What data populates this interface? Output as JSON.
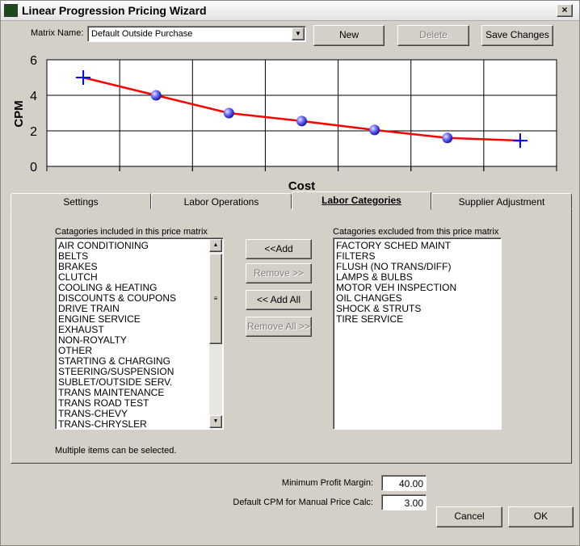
{
  "window": {
    "title": "Linear Progression Pricing Wizard"
  },
  "toolbar": {
    "matrix_label": "Matrix Name:",
    "matrix_value": "Default Outside Purchase",
    "buttons": [
      {
        "label": "New",
        "enabled": true
      },
      {
        "label": "Delete",
        "enabled": false
      },
      {
        "label": "Save Changes",
        "enabled": true
      }
    ]
  },
  "chart_data": {
    "type": "line",
    "y_label": "CPM",
    "x_label": "Cost",
    "categories": [
      null,
      null,
      null,
      null,
      null,
      null,
      null
    ],
    "values": [
      5,
      4,
      3,
      2.55,
      2.05,
      1.6,
      1.45
    ],
    "color": "#ff0000",
    "ylim": [
      0,
      6
    ],
    "yticks": [
      0,
      2,
      4,
      6
    ],
    "grid": true
  },
  "tabs": {
    "items": [
      "Settings",
      "Labor Operations",
      "Labor Categories",
      "Supplier Adjustment"
    ],
    "active": 2
  },
  "included": {
    "label": "Catagories included in this price matrix",
    "items": [
      "AIR CONDITIONING",
      "BELTS",
      "BRAKES",
      "CLUTCH",
      "COOLING & HEATING",
      "DISCOUNTS & COUPONS",
      "DRIVE TRAIN",
      "ENGINE SERVICE",
      "EXHAUST",
      "NON-ROYALTY",
      "OTHER",
      "STARTING & CHARGING",
      "STEERING/SUSPENSION",
      "SUBLET/OUTSIDE SERV.",
      "TRANS MAINTENANCE",
      "TRANS ROAD TEST",
      "TRANS-CHEVY",
      "TRANS-CHRYSLER"
    ]
  },
  "excluded": {
    "label": "Catagories excluded from this price matrix",
    "items": [
      "FACTORY SCHED MAINT",
      "FILTERS",
      "FLUSH (NO TRANS/DIFF)",
      "LAMPS & BULBS",
      "MOTOR VEH INSPECTION",
      "OIL CHANGES",
      "SHOCK & STRUTS",
      "TIRE SERVICE"
    ]
  },
  "transfer_buttons": [
    {
      "label": "<<Add",
      "enabled": true
    },
    {
      "label": "Remove >>",
      "enabled": false
    },
    {
      "label": "<< Add All",
      "enabled": true
    },
    {
      "label": "Remove All >>",
      "enabled": false
    }
  ],
  "hint": "Multiple items can be selected.",
  "fields": [
    {
      "label": "Minimum Profit Margin:",
      "value": "40.00"
    },
    {
      "label": "Default CPM for Manual Price Calc:",
      "value": "3.00"
    }
  ],
  "dialog_buttons": [
    {
      "label": "Cancel",
      "enabled": true
    },
    {
      "label": "OK",
      "enabled": true
    }
  ]
}
